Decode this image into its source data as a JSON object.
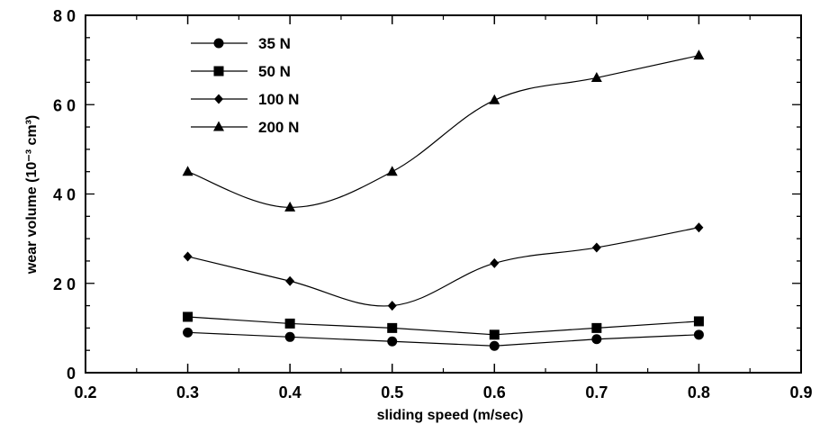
{
  "chart_data": {
    "type": "line",
    "title": "",
    "xlabel": "sliding  speed  (m/sec)",
    "ylabel": "wear volume (10⁻³ cm³)",
    "xlim": [
      0.2,
      0.9
    ],
    "ylim": [
      0,
      80
    ],
    "xticks": [
      "0.2",
      "0.3",
      "0.4",
      "0.5",
      "0.6",
      "0.7",
      "0.8",
      "0.9"
    ],
    "yticks": [
      "0",
      "2 0",
      "4 0",
      "6 0",
      "8 0"
    ],
    "x": [
      0.3,
      0.4,
      0.5,
      0.6,
      0.7,
      0.8
    ],
    "grid": false,
    "legend_position": "top-left",
    "series": [
      {
        "name": "35  N",
        "marker": "circle",
        "values": [
          9,
          8,
          7,
          6,
          7.5,
          8.5
        ]
      },
      {
        "name": "50  N",
        "marker": "square",
        "values": [
          12.5,
          11,
          10,
          8.5,
          10,
          11.5
        ]
      },
      {
        "name": "100   N",
        "marker": "diamond",
        "values": [
          26,
          20.5,
          15,
          24.5,
          28,
          32.5
        ]
      },
      {
        "name": "200   N",
        "marker": "triangle",
        "values": [
          45,
          37,
          45,
          61,
          66,
          71
        ]
      }
    ]
  }
}
